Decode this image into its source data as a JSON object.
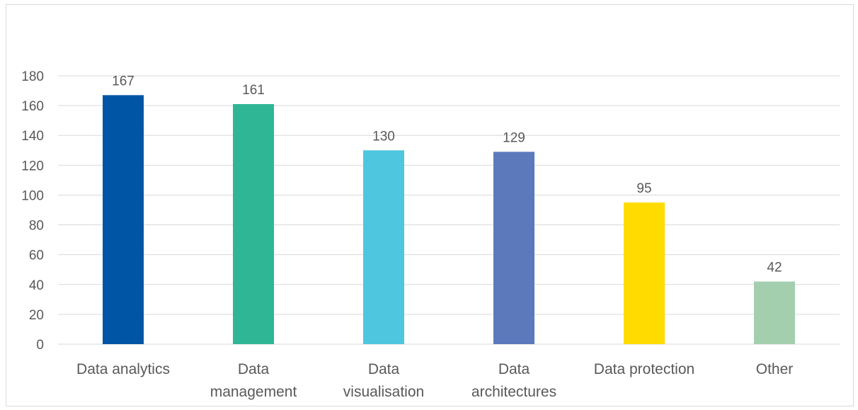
{
  "chart_data": {
    "type": "bar",
    "categories": [
      [
        "Data analytics"
      ],
      [
        "Data",
        "management"
      ],
      [
        "Data",
        "visualisation"
      ],
      [
        "Data",
        "architectures"
      ],
      [
        "Data protection"
      ],
      [
        "Other"
      ]
    ],
    "values": [
      167,
      161,
      130,
      129,
      95,
      42
    ],
    "colors": [
      "#0055a5",
      "#2fb795",
      "#4fc6df",
      "#5b79bb",
      "#ffdb00",
      "#a3cfae"
    ],
    "ylim": [
      0,
      180
    ],
    "yticks": [
      0,
      20,
      40,
      60,
      80,
      100,
      120,
      140,
      160,
      180
    ],
    "grid": true,
    "data_labels": true,
    "title": "",
    "xlabel": "",
    "ylabel": ""
  }
}
